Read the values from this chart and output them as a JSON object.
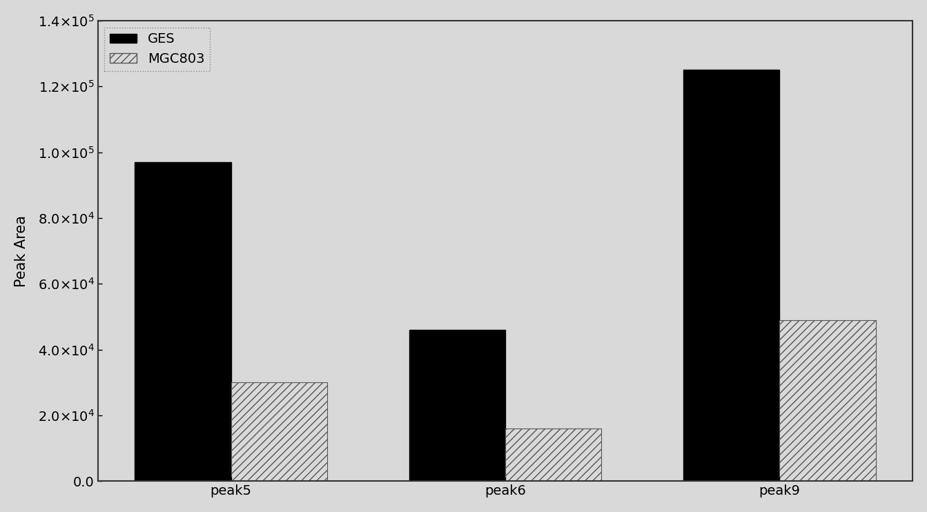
{
  "categories": [
    "peak5",
    "peak6",
    "peak9"
  ],
  "ges_values": [
    97000,
    46000,
    125000
  ],
  "mgc803_values": [
    30000,
    16000,
    49000
  ],
  "ges_color": "#000000",
  "ylabel": "Peak Area",
  "ylim": [
    0,
    140000
  ],
  "yticks": [
    0,
    20000,
    40000,
    60000,
    80000,
    100000,
    120000,
    140000
  ],
  "bar_width": 0.35,
  "legend_labels": [
    "GES",
    "MGC803"
  ],
  "hatch_pattern": "///",
  "figsize": [
    13.43,
    7.42
  ],
  "dpi": 100,
  "tick_label_fontsize": 14,
  "axis_label_fontsize": 15,
  "legend_fontsize": 14,
  "bg_color": "#d9d9d9",
  "spine_linewidth": 1.5
}
